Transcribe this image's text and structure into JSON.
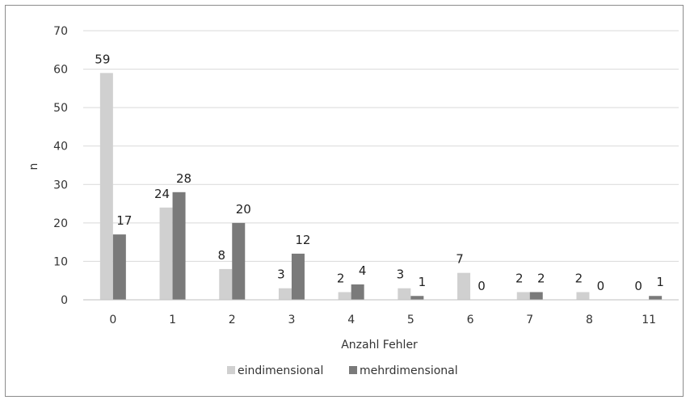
{
  "chart_data": {
    "type": "bar",
    "title": "",
    "xlabel": "Anzahl Fehler",
    "ylabel": "n",
    "ylim": [
      0,
      70
    ],
    "yticks": [
      0,
      10,
      20,
      30,
      40,
      50,
      60,
      70
    ],
    "grid": true,
    "legend_position": "bottom",
    "categories": [
      "0",
      "1",
      "2",
      "3",
      "4",
      "5",
      "6",
      "7",
      "8",
      "11"
    ],
    "series": [
      {
        "name": "eindimensional",
        "color": "#d0d0d0",
        "values": [
          59,
          24,
          8,
          3,
          2,
          3,
          7,
          2,
          2,
          0
        ]
      },
      {
        "name": "mehrdimensional",
        "color": "#7a7a7a",
        "values": [
          17,
          28,
          20,
          12,
          4,
          1,
          0,
          2,
          0,
          1
        ]
      }
    ]
  }
}
